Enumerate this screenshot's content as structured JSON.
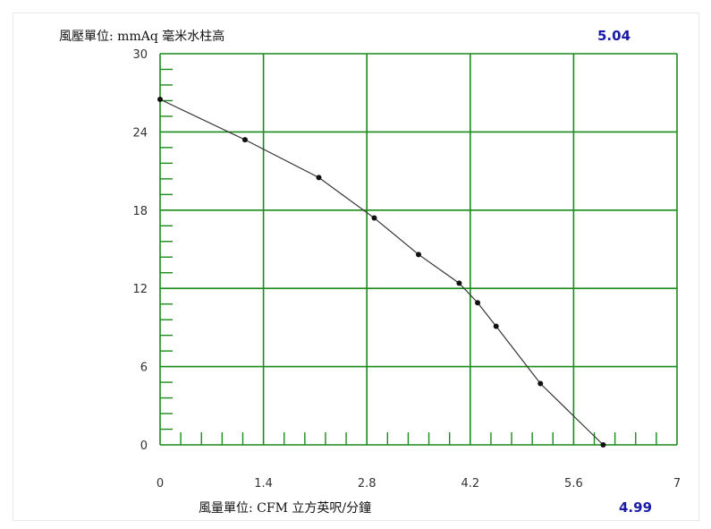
{
  "labels": {
    "y_unit": "風壓單位: mmAq 毫米水柱高",
    "x_unit": "風量單位:  CFM 立方英呎/分鐘",
    "y_readout": "5.04",
    "x_readout": "4.99"
  },
  "colors": {
    "grid": "#1a8a1a",
    "line": "#333333",
    "point": "#111111",
    "readout": "#1a1aa8"
  },
  "chart_data": {
    "type": "line",
    "title": "",
    "xlabel": "風量單位:  CFM 立方英呎/分鐘",
    "ylabel": "風壓單位: mmAq 毫米水柱高",
    "xlim": [
      0,
      7
    ],
    "ylim": [
      0,
      30
    ],
    "x_ticks": [
      "0",
      "1.4",
      "2.8",
      "4.2",
      "5.6",
      "7"
    ],
    "y_ticks": [
      "0",
      "6",
      "12",
      "18",
      "24",
      "30"
    ],
    "grid": true,
    "series": [
      {
        "x": [
          0,
          1.15,
          2.15,
          2.9,
          3.5,
          4.05,
          4.3,
          4.55,
          5.15,
          6.0
        ],
        "y": [
          26.5,
          23.4,
          20.5,
          17.4,
          14.6,
          12.4,
          10.9,
          9.1,
          4.7,
          0
        ]
      }
    ]
  }
}
